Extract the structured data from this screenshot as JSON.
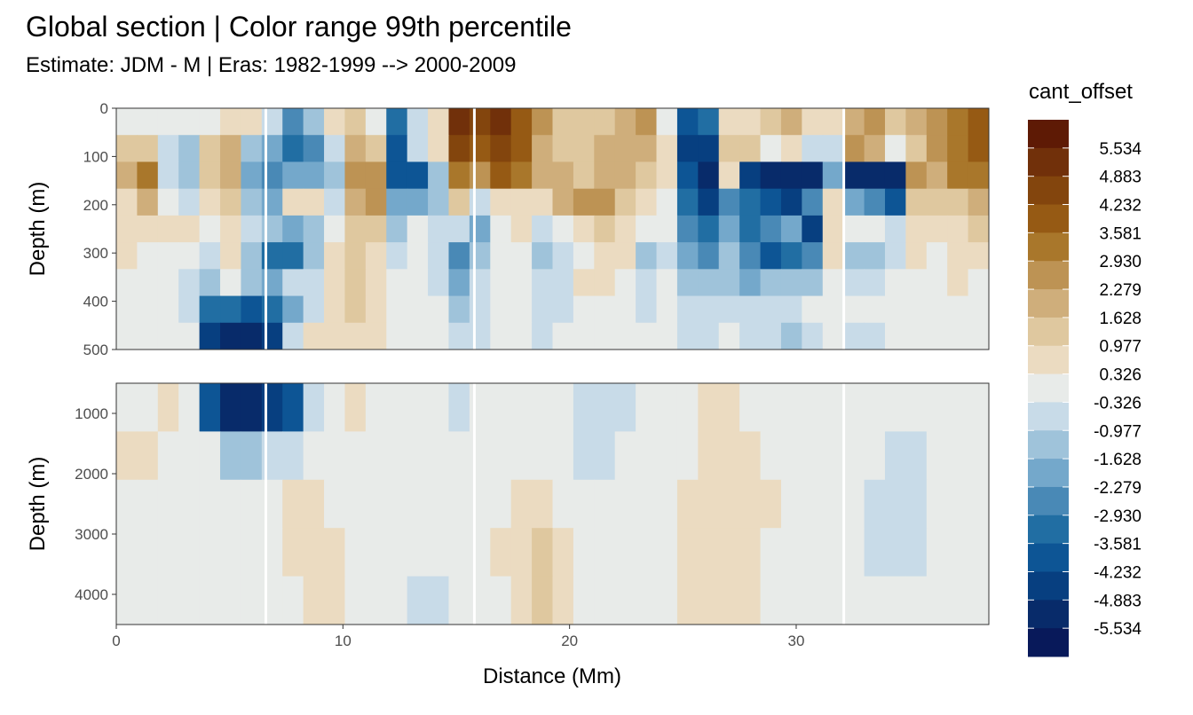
{
  "chart_data": {
    "type": "heatmap",
    "title": "Global section | Color range 99th percentile",
    "subtitle": "Estimate: JDM - M | Eras: 1982-1999 --> 2000-2009",
    "xlabel": "Distance (Mm)",
    "ylabel": "Depth (m)",
    "x_range": [
      0,
      38.5
    ],
    "x_ticks": [
      "0",
      "10",
      "20",
      "30"
    ],
    "x_tick_values": [
      0,
      10,
      20,
      30
    ],
    "panels": [
      {
        "name": "upper",
        "depth_range": [
          0,
          500
        ],
        "y_ticks": [
          "0",
          "100",
          "200",
          "300",
          "400",
          "500"
        ],
        "y_tick_values": [
          0,
          100,
          200,
          300,
          400,
          500
        ]
      },
      {
        "name": "lower",
        "depth_range": [
          500,
          4500
        ],
        "y_ticks": [
          "1000",
          "2000",
          "3000",
          "4000"
        ],
        "y_tick_values": [
          1000,
          2000,
          3000,
          4000
        ]
      }
    ],
    "section_breaks_x": [
      6.6,
      15.8,
      32.1
    ],
    "legend": {
      "title": "cant_offset",
      "position": "right",
      "labels": [
        "5.534",
        "4.883",
        "4.232",
        "3.581",
        "2.930",
        "2.279",
        "1.628",
        "0.977",
        "0.326",
        "-0.326",
        "-0.977",
        "-1.628",
        "-2.279",
        "-2.930",
        "-3.581",
        "-4.232",
        "-4.883",
        "-5.534"
      ],
      "colors": [
        "#5e1a05",
        "#71300a",
        "#83450d",
        "#965a14",
        "#a9772b",
        "#bd9354",
        "#cfae7b",
        "#dfc89f",
        "#ebdbc1",
        "#e8ebe9",
        "#c8dbe8",
        "#9fc3da",
        "#74a8cb",
        "#4989b6",
        "#216ea3",
        "#0d5595",
        "#073f80",
        "#082b6a",
        "#08195a"
      ]
    },
    "cells": [
      [
        0.2,
        0,
        -0.3,
        0.0,
        0.3,
        0.4,
        0.5,
        -0.8,
        -2.6,
        -1.5,
        0.6,
        1.5,
        0.2,
        -3.1,
        -0.4,
        0.5,
        5.2,
        4.6,
        4.9,
        4.2,
        2.5,
        1.5,
        1.1,
        1.3,
        1.8,
        2.4,
        0.3,
        -4.0,
        -3.2,
        0.8,
        0.9,
        1.3,
        1.7,
        0.6,
        0.5,
        2.1,
        2.3,
        1.0,
        1.7,
        2.9,
        3.5,
        3.8
      ],
      [
        1.0,
        1.6,
        -0.6,
        -1.1,
        1.3,
        1.7,
        -1.2,
        -1.8,
        -3.3,
        -2.7,
        -0.4,
        2.1,
        1.4,
        -3.6,
        -0.7,
        0.6,
        4.3,
        3.8,
        4.4,
        3.9,
        2.2,
        1.6,
        1.3,
        1.7,
        2.0,
        2.1,
        0.6,
        -4.6,
        -4.8,
        1.1,
        1.4,
        -0.2,
        0.6,
        -0.4,
        -0.6,
        2.6,
        2.0,
        -0.2,
        1.4,
        2.6,
        3.4,
        4.0
      ],
      [
        1.7,
        3.5,
        -0.9,
        -1.6,
        1.6,
        2.0,
        -2.0,
        -2.4,
        -2.0,
        -1.9,
        -1.3,
        2.6,
        2.5,
        -4.0,
        -3.6,
        -1.5,
        3.0,
        2.9,
        3.8,
        3.3,
        1.7,
        1.9,
        1.5,
        1.8,
        1.9,
        1.6,
        0.8,
        -3.9,
        -5.2,
        0.8,
        -4.8,
        -4.9,
        -5.1,
        -5.0,
        -2.1,
        -4.9,
        -5.0,
        -5.2,
        2.7,
        2.2,
        3.0,
        3.2
      ],
      [
        0.9,
        1.9,
        -0.2,
        -0.7,
        0.8,
        1.0,
        -1.5,
        -1.9,
        0.5,
        0.8,
        -0.8,
        2.0,
        2.3,
        -2.2,
        -2.1,
        -1.0,
        1.6,
        -0.4,
        0.7,
        0.5,
        0.6,
        1.7,
        2.4,
        2.3,
        1.6,
        0.6,
        0.0,
        -3.5,
        -4.3,
        -2.4,
        -3.2,
        -4.0,
        -4.6,
        -2.7,
        0.8,
        -1.9,
        -2.4,
        -4.0,
        1.4,
        1.0,
        1.6,
        1.8
      ],
      [
        0.5,
        0.6,
        0.7,
        0.4,
        -0.1,
        0.6,
        -0.8,
        -1.1,
        -2.1,
        -1.4,
        -0.2,
        1.4,
        1.3,
        -1.5,
        -0.3,
        -0.6,
        -0.5,
        -1.8,
        0.3,
        0.4,
        -0.6,
        0.2,
        0.7,
        1.0,
        0.9,
        0.0,
        -0.2,
        -2.8,
        -3.5,
        -2.1,
        -3.3,
        -2.4,
        -2.1,
        -4.5,
        0.6,
        0.2,
        0.3,
        -0.4,
        0.9,
        0.5,
        0.8,
        1.1
      ],
      [
        0.4,
        0.3,
        0.2,
        -0.3,
        -0.7,
        0.5,
        -1.0,
        -3.2,
        -3.0,
        -1.2,
        0.4,
        1.2,
        0.9,
        -0.4,
        0.2,
        -0.5,
        -2.4,
        -1.0,
        -0.2,
        0.0,
        -1.1,
        -0.8,
        0.2,
        0.7,
        0.4,
        -1.0,
        -0.6,
        -1.9,
        -2.4,
        -1.6,
        -2.9,
        -3.8,
        -3.4,
        -2.6,
        0.7,
        -1.2,
        -1.6,
        -0.4,
        0.4,
        0.3,
        0.4,
        0.6
      ],
      [
        0.3,
        0.2,
        -0.2,
        -0.6,
        -1.2,
        0.3,
        -1.4,
        -2.0,
        -0.8,
        -0.4,
        0.8,
        1.1,
        0.6,
        -0.3,
        -0.1,
        -0.4,
        -1.7,
        -0.8,
        0.1,
        -0.2,
        -0.9,
        -0.5,
        0.5,
        0.5,
        0.1,
        -0.6,
        -0.3,
        -1.1,
        -1.6,
        -1.2,
        -1.9,
        -1.5,
        -1.1,
        -1.0,
        0.3,
        -0.8,
        -0.6,
        0.1,
        0.3,
        0.1,
        0.4,
        0.3
      ],
      [
        0.2,
        0.1,
        -0.1,
        -0.9,
        -3.1,
        -3.3,
        -4.1,
        -3.5,
        -1.7,
        -0.4,
        0.8,
        1.0,
        0.4,
        -0.1,
        -0.2,
        -0.3,
        -1.3,
        -0.6,
        0.0,
        -0.2,
        -0.5,
        -0.4,
        0.2,
        0.3,
        0.0,
        -0.4,
        -0.2,
        -0.8,
        -0.9,
        -0.7,
        -0.6,
        -0.5,
        -0.4,
        -0.3,
        0.2,
        -0.3,
        -0.2,
        0.0,
        0.2,
        0.1,
        0.2,
        0.2
      ],
      [
        0.1,
        0.1,
        0.0,
        -0.1,
        -4.4,
        -5.2,
        -5.4,
        -4.8,
        -0.5,
        0.4,
        0.6,
        0.9,
        0.5,
        0.1,
        -0.1,
        -0.1,
        -0.6,
        -0.4,
        -0.1,
        -0.1,
        -0.4,
        -0.3,
        -0.1,
        -0.2,
        -0.2,
        -0.3,
        -0.3,
        -0.6,
        -0.5,
        -0.3,
        -0.4,
        -0.9,
        -1.1,
        -0.4,
        0.3,
        -0.7,
        -0.9,
        -0.1,
        0.0,
        0.1,
        0.0,
        0.0
      ],
      [
        0.2,
        0.3,
        0.4,
        -0.2,
        -3.9,
        -5.0,
        -5.4,
        -4.7,
        -3.6,
        -0.9,
        0.1,
        0.4,
        0.3,
        0.0,
        -0.1,
        -0.1,
        -0.4,
        -0.2,
        -0.1,
        -0.1,
        -0.2,
        -0.2,
        -0.4,
        -0.6,
        -0.4,
        -0.2,
        -0.2,
        0.1,
        0.5,
        0.6,
        0.3,
        0.2,
        0.1,
        -0.1,
        0.1,
        0.2,
        0.2,
        0.0,
        0.0,
        0.0,
        0.0,
        0.0
      ],
      [
        0.5,
        0.4,
        0.2,
        0.0,
        -0.3,
        -1.0,
        -1.2,
        -0.9,
        -0.5,
        0.1,
        0.2,
        0.3,
        0.2,
        0.0,
        -0.1,
        -0.1,
        -0.3,
        -0.2,
        0.1,
        0.0,
        -0.1,
        -0.2,
        -0.4,
        -0.4,
        -0.1,
        0.0,
        0.1,
        0.3,
        0.6,
        0.8,
        0.5,
        0.3,
        0.2,
        0.0,
        0.0,
        0.0,
        -0.2,
        -0.4,
        -0.4,
        0.0,
        0.0,
        0.0
      ],
      [
        0.3,
        0.2,
        0.1,
        0.1,
        0.0,
        0.0,
        0.0,
        0.0,
        0.4,
        0.4,
        0.3,
        0.2,
        0.1,
        0.0,
        -0.1,
        -0.1,
        -0.2,
        -0.1,
        0.3,
        0.5,
        0.4,
        0.0,
        -0.2,
        -0.2,
        0.0,
        0.0,
        0.1,
        0.5,
        0.8,
        0.9,
        0.7,
        0.4,
        0.2,
        0.0,
        0.0,
        0.0,
        -0.5,
        -0.7,
        -0.5,
        0.0,
        0.0,
        0.0
      ],
      [
        0.2,
        0.1,
        0.1,
        0.0,
        0.0,
        0.0,
        0.0,
        0.1,
        0.5,
        0.7,
        0.5,
        0.3,
        0.1,
        0.0,
        -0.2,
        -0.1,
        -0.2,
        -0.1,
        0.4,
        0.9,
        1.0,
        0.4,
        0.0,
        0.0,
        0.0,
        0.1,
        0.1,
        0.5,
        0.7,
        0.8,
        0.5,
        0.3,
        0.1,
        0.0,
        0.0,
        0.0,
        -0.4,
        -0.5,
        -0.4,
        0.0,
        0.0,
        0.0
      ],
      [
        0.1,
        0.1,
        0.0,
        0.0,
        0.3,
        0.2,
        0.0,
        0.1,
        0.3,
        0.4,
        0.4,
        0.2,
        0.1,
        0.0,
        -0.6,
        -0.4,
        -0.2,
        0.0,
        0.2,
        0.9,
        1.1,
        0.6,
        0.1,
        0.0,
        0.0,
        0.0,
        0.0,
        0.4,
        0.6,
        0.5,
        0.4,
        0.2,
        0.1,
        0.0,
        0.0,
        0.0,
        -0.1,
        -0.2,
        -0.1,
        0.0,
        0.0,
        0.0
      ]
    ]
  }
}
